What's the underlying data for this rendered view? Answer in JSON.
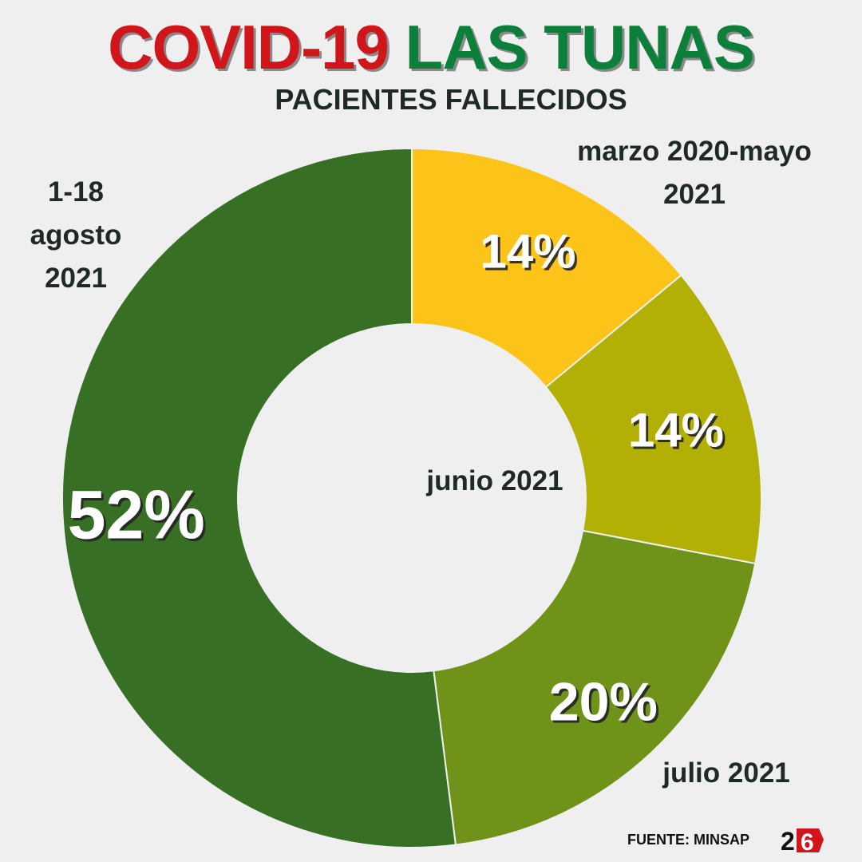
{
  "header": {
    "title_part1": "COVID-19",
    "title_part2": "LAS TUNAS",
    "subtitle": "PACIENTES FALLECIDOS"
  },
  "colors": {
    "title_red": "#d0161b",
    "title_green": "#0c7f3a",
    "slice_colors": [
      "#fcc419",
      "#b2b004",
      "#6e9318",
      "#376f24"
    ]
  },
  "chart_data": {
    "type": "pie",
    "title": "PACIENTES FALLECIDOS",
    "categories": [
      "marzo 2020-mayo 2021",
      "junio 2021",
      "julio 2021",
      "1-18 agosto 2021"
    ],
    "values": [
      14,
      14,
      20,
      52
    ],
    "value_labels": [
      "14%",
      "14%",
      "20%",
      "52%"
    ],
    "donut": true
  },
  "labels": {
    "marzo": [
      "marzo 2020-mayo",
      "2021"
    ],
    "junio": "junio 2021",
    "julio": "julio 2021",
    "agosto": [
      "1-18",
      "agosto",
      "2021"
    ]
  },
  "footer": {
    "source": "FUENTE: MINSAP",
    "logo_icon": "logo-26-icon"
  }
}
